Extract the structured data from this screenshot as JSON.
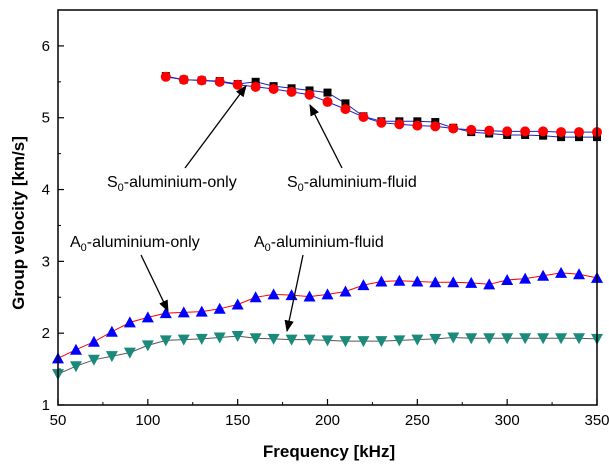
{
  "chart_data": {
    "type": "scatter",
    "xlabel": "Frequency [kHz]",
    "ylabel": "Group velocity [km/s]",
    "xlim": [
      50,
      350
    ],
    "ylim": [
      1,
      6.5
    ],
    "x_ticks": [
      50,
      100,
      150,
      200,
      250,
      300,
      350
    ],
    "y_ticks": [
      1,
      2,
      3,
      4,
      5,
      6
    ],
    "legend": "none",
    "grid": false,
    "series": [
      {
        "name": "S0-aluminium-only",
        "marker": "square",
        "marker_color": "#000000",
        "line_color": "#1f1fbf",
        "x": [
          110,
          120,
          130,
          140,
          150,
          160,
          170,
          180,
          190,
          200,
          210,
          220,
          230,
          240,
          250,
          260,
          270,
          280,
          290,
          300,
          310,
          320,
          330,
          340,
          350
        ],
        "y": [
          5.58,
          5.53,
          5.52,
          5.51,
          5.47,
          5.5,
          5.44,
          5.41,
          5.38,
          5.35,
          5.2,
          5.02,
          4.95,
          4.95,
          4.95,
          4.94,
          4.86,
          4.8,
          4.78,
          4.76,
          4.76,
          4.75,
          4.73,
          4.73,
          4.73
        ]
      },
      {
        "name": "S0-aluminium-fluid",
        "marker": "circle",
        "marker_color": "#ff0000",
        "line_color": "#1f1fbf",
        "x": [
          110,
          120,
          130,
          140,
          150,
          160,
          170,
          180,
          190,
          200,
          210,
          220,
          230,
          240,
          250,
          260,
          270,
          280,
          290,
          300,
          310,
          320,
          330,
          340,
          350
        ],
        "y": [
          5.57,
          5.53,
          5.52,
          5.5,
          5.46,
          5.43,
          5.4,
          5.36,
          5.32,
          5.22,
          5.12,
          5.01,
          4.93,
          4.91,
          4.89,
          4.88,
          4.85,
          4.83,
          4.82,
          4.81,
          4.81,
          4.81,
          4.8,
          4.8,
          4.8
        ]
      },
      {
        "name": "A0-aluminium-only",
        "marker": "triangle-up",
        "marker_color": "#0000ff",
        "line_color": "#ff0000",
        "x": [
          50,
          60,
          70,
          80,
          90,
          100,
          110,
          120,
          130,
          140,
          150,
          160,
          170,
          180,
          190,
          200,
          210,
          220,
          230,
          240,
          250,
          260,
          270,
          280,
          290,
          300,
          310,
          320,
          330,
          340,
          350
        ],
        "y": [
          1.65,
          1.77,
          1.88,
          2.02,
          2.15,
          2.22,
          2.28,
          2.29,
          2.3,
          2.34,
          2.4,
          2.5,
          2.54,
          2.53,
          2.51,
          2.54,
          2.58,
          2.67,
          2.72,
          2.73,
          2.72,
          2.71,
          2.71,
          2.7,
          2.68,
          2.74,
          2.76,
          2.8,
          2.84,
          2.82,
          2.77
        ]
      },
      {
        "name": "A0-aluminium-fluid",
        "marker": "triangle-down",
        "marker_color": "#1a8a7a",
        "line_color": "#555555",
        "x": [
          50,
          60,
          70,
          80,
          90,
          100,
          110,
          120,
          130,
          140,
          150,
          160,
          170,
          180,
          190,
          200,
          210,
          220,
          230,
          240,
          250,
          260,
          270,
          280,
          290,
          300,
          310,
          320,
          330,
          340,
          350
        ],
        "y": [
          1.43,
          1.54,
          1.63,
          1.68,
          1.73,
          1.83,
          1.9,
          1.91,
          1.92,
          1.94,
          1.96,
          1.93,
          1.92,
          1.91,
          1.91,
          1.9,
          1.89,
          1.89,
          1.89,
          1.9,
          1.91,
          1.92,
          1.94,
          1.93,
          1.93,
          1.93,
          1.93,
          1.93,
          1.93,
          1.93,
          1.92
        ]
      }
    ],
    "annotations": [
      {
        "id": "s0-only",
        "text_main": "S",
        "text_sub": "0",
        "text_rest": "-aluminium-only",
        "points_to": [
          160,
          5.49
        ]
      },
      {
        "id": "s0-fluid",
        "text_main": "S",
        "text_sub": "0",
        "text_rest": "-aluminium-fluid",
        "points_to": [
          176,
          5.37
        ]
      },
      {
        "id": "a0-only",
        "text_main": "A",
        "text_sub": "0",
        "text_rest": "-aluminium-only",
        "points_to": [
          113,
          2.28
        ]
      },
      {
        "id": "a0-fluid",
        "text_main": "A",
        "text_sub": "0",
        "text_rest": "-aluminium-fluid",
        "points_to": [
          176,
          1.93
        ]
      }
    ]
  }
}
